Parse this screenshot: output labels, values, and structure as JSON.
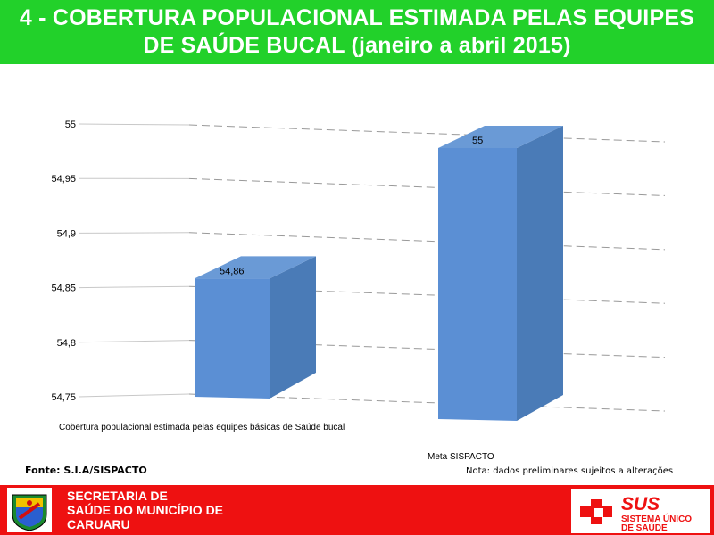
{
  "header": {
    "title_line1": "4 - COBERTURA POPULACIONAL ESTIMADA PELAS EQUIPES",
    "title_line2": "DE SAÚDE BUCAL (janeiro a abril 2015)"
  },
  "chart_data": {
    "type": "bar",
    "style": "3d-column",
    "categories": [
      "Cobertura populacional estimada pelas equipes básicas de Saúde bucal",
      "Meta SISPACTO"
    ],
    "values": [
      54.86,
      55
    ],
    "data_labels": [
      "54,86",
      "55"
    ],
    "ylim": [
      54.75,
      55
    ],
    "yticks": [
      54.75,
      54.8,
      54.85,
      54.9,
      54.95,
      55
    ],
    "ytick_labels": [
      "54,75",
      "54,8",
      "54,85",
      "54,9",
      "54,95",
      "55"
    ],
    "grid": true,
    "bar_color": "#4f81bd"
  },
  "footnotes": {
    "source": "Fonte: S.I.A/SISPACTO",
    "note": "Nota: dados preliminares sujeitos a alterações"
  },
  "footer": {
    "dept_line1": "SECRETARIA DE",
    "dept_line2": "SAÚDE DO MUNICÍPIO DE",
    "dept_line3": "CARUARU",
    "logo_text": "SUS",
    "logo_line2": "SISTEMA ÚNICO",
    "logo_line3": "DE SAÚDE",
    "accent_color": "#ee1111",
    "header_color": "#22d12a"
  }
}
